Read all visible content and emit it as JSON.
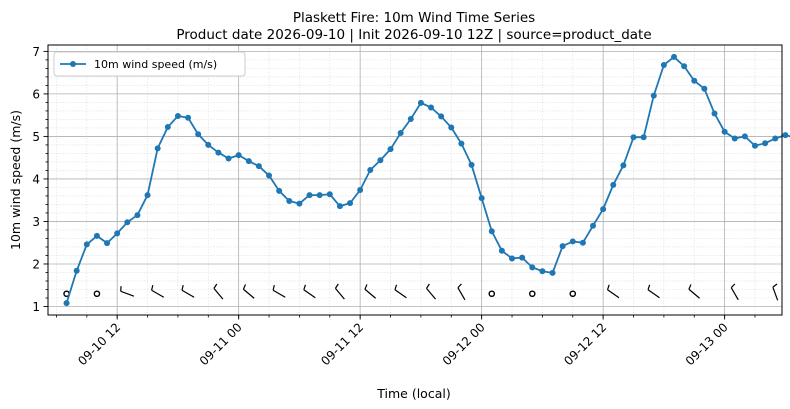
{
  "chart_data": {
    "type": "line",
    "title": "Plaskett Fire: 10m Wind Time Series",
    "subtitle": "Product date 2026-09-10 | Init 2026-09-10 12Z | source=product_date",
    "xlabel": "Time (local)",
    "ylabel": "10m wind speed (m/s)",
    "ylim": [
      0.8,
      7.15
    ],
    "xlim": [
      "2026-09-10 05:10",
      "2026-09-13 05:40"
    ],
    "y_ticks": [
      "1",
      "2",
      "3",
      "4",
      "5",
      "6",
      "7"
    ],
    "x_ticks": [
      {
        "t": "2026-09-10 12:00",
        "label": "09-10 12"
      },
      {
        "t": "2026-09-11 00:00",
        "label": "09-11 00"
      },
      {
        "t": "2026-09-11 12:00",
        "label": "09-11 12"
      },
      {
        "t": "2026-09-12 00:00",
        "label": "09-12 00"
      },
      {
        "t": "2026-09-12 12:00",
        "label": "09-12 12"
      },
      {
        "t": "2026-09-13 00:00",
        "label": "09-13 00"
      }
    ],
    "grid": true,
    "legend_position": "top-left",
    "series": [
      {
        "name": "10m wind speed (m/s)",
        "color": "#1f77b4",
        "start": "2026-09-10 07:00",
        "step_hours": 1,
        "values": [
          1.08,
          1.84,
          2.46,
          2.66,
          2.49,
          2.72,
          2.98,
          3.15,
          3.62,
          4.72,
          5.22,
          5.48,
          5.44,
          5.05,
          4.8,
          4.62,
          4.48,
          4.56,
          4.42,
          4.3,
          4.08,
          3.72,
          3.48,
          3.42,
          3.62,
          3.62,
          3.64,
          3.36,
          3.43,
          3.74,
          4.21,
          4.44,
          4.7,
          5.08,
          5.41,
          5.79,
          5.68,
          5.47,
          5.21,
          4.83,
          4.33,
          3.55,
          2.77,
          2.31,
          2.13,
          2.15,
          1.92,
          1.83,
          1.79,
          2.42,
          2.53,
          2.5,
          2.9,
          3.29,
          3.86,
          4.32,
          4.98,
          4.98,
          5.96,
          6.68,
          6.87,
          6.65,
          6.31,
          6.12,
          5.54,
          5.11,
          4.95,
          5.0,
          4.78,
          4.84,
          4.95,
          5.03,
          4.97
        ]
      }
    ],
    "wind_barbs": {
      "y": 1.3,
      "times": [
        "2026-09-10 07:00",
        "2026-09-10 10:00",
        "2026-09-10 13:00",
        "2026-09-10 16:00",
        "2026-09-10 19:00",
        "2026-09-10 22:00",
        "2026-09-11 01:00",
        "2026-09-11 04:00",
        "2026-09-11 07:00",
        "2026-09-11 10:00",
        "2026-09-11 13:00",
        "2026-09-11 16:00",
        "2026-09-11 19:00",
        "2026-09-11 22:00",
        "2026-09-12 01:00",
        "2026-09-12 05:00",
        "2026-09-12 09:00",
        "2026-09-12 13:00",
        "2026-09-12 17:00",
        "2026-09-12 21:00",
        "2026-09-13 01:00",
        "2026-09-13 05:00"
      ],
      "calm": [
        true,
        true,
        false,
        false,
        false,
        false,
        false,
        false,
        false,
        false,
        false,
        false,
        false,
        false,
        true,
        true,
        true,
        false,
        false,
        false,
        false,
        false
      ],
      "direction_deg": [
        0,
        0,
        290,
        300,
        300,
        320,
        310,
        300,
        305,
        320,
        310,
        305,
        320,
        330,
        0,
        0,
        0,
        305,
        305,
        310,
        330,
        340
      ]
    }
  }
}
